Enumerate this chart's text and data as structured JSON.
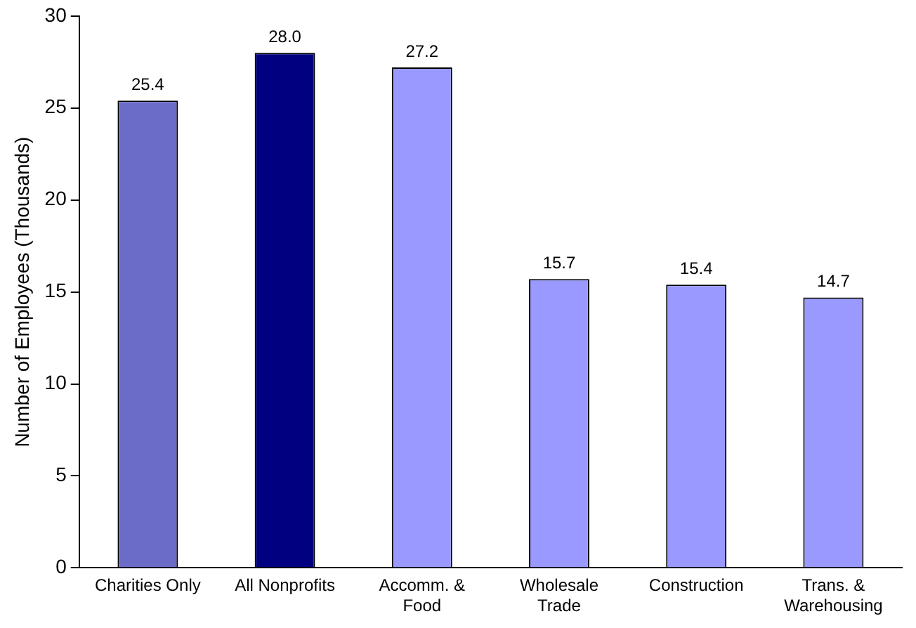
{
  "chart_data": {
    "type": "bar",
    "ylabel": "Number of Employees (Thousands)",
    "categories": [
      "Charities Only",
      "All Nonprofits",
      "Accomm. & Food",
      "Wholesale Trade",
      "Construction",
      "Trans. & Warehousing"
    ],
    "values": [
      25.4,
      28.0,
      27.2,
      15.7,
      15.4,
      14.7
    ],
    "colors": [
      "#6b6bc8",
      "#000080",
      "#9999ff",
      "#9999ff",
      "#9999ff",
      "#9999ff"
    ],
    "value_labels": [
      "25.4",
      "28.0",
      "27.2",
      "15.7",
      "15.4",
      "14.7"
    ],
    "ylim": [
      0,
      30
    ],
    "yticks": [
      0,
      5,
      10,
      15,
      20,
      25,
      30
    ],
    "grid": false,
    "legend": false
  }
}
